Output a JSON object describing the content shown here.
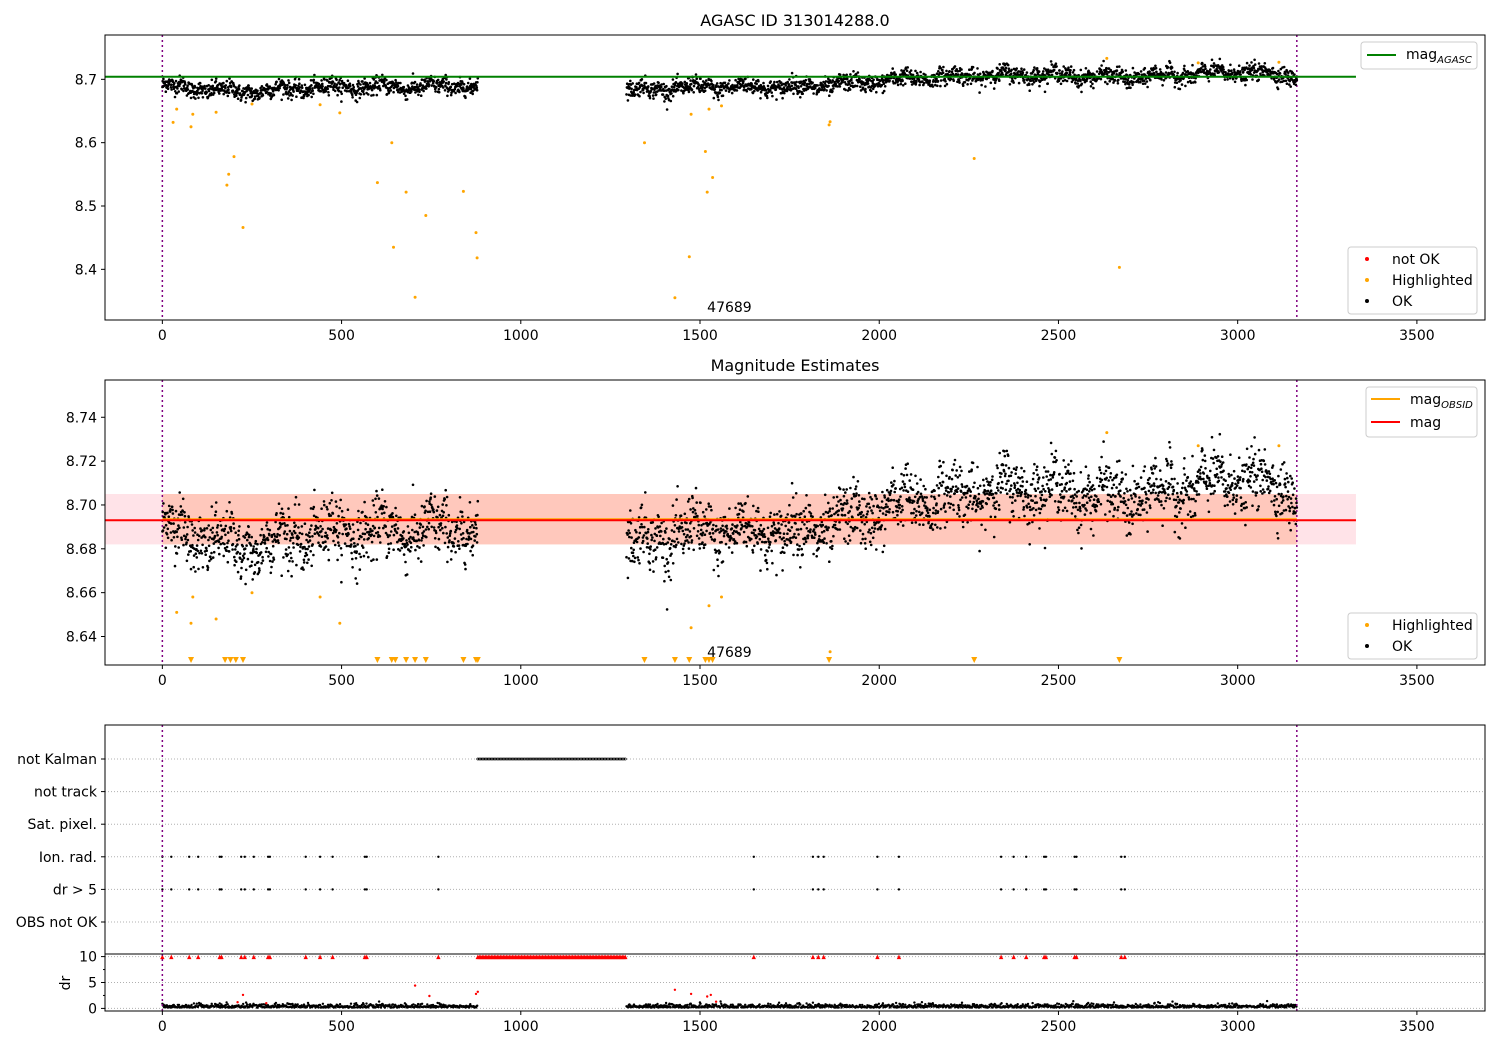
{
  "figure": {
    "title": "AGASC ID 313014288.0",
    "annotation": "47689",
    "obs_boundaries": [
      0,
      3165
    ],
    "annotation_x": 1520
  },
  "chart_data": [
    {
      "type": "scatter",
      "panel": "top",
      "title": "",
      "xlim": [
        -160,
        3690
      ],
      "ylim": [
        8.32,
        8.77
      ],
      "xticks": [
        0,
        500,
        1000,
        1500,
        2000,
        2500,
        3000,
        3500
      ],
      "yticks": [
        8.4,
        8.5,
        8.6,
        8.7
      ],
      "reference_line": {
        "name": "mag",
        "sub": "AGASC",
        "value": 8.704,
        "color": "#008000",
        "x_end": 3330
      },
      "legend_top": [
        {
          "name": "mag",
          "sub": "AGASC",
          "color": "#008000"
        }
      ],
      "legend_bottom": [
        {
          "name": "not OK",
          "color": "#ff0000"
        },
        {
          "name": "Highlighted",
          "color": "#ffa500"
        },
        {
          "name": "OK",
          "color": "#000000"
        }
      ],
      "segments": [
        {
          "x": [
            0,
            880
          ],
          "levels": [
            [
              0,
              8.69
            ],
            [
              220,
              8.68
            ],
            [
              450,
              8.688
            ],
            [
              700,
              8.688
            ],
            [
              880,
              8.69
            ]
          ],
          "spread": 0.012
        },
        {
          "x": [
            1295,
            3165
          ],
          "levels": [
            [
              1295,
              8.683
            ],
            [
              1500,
              8.688
            ],
            [
              1800,
              8.688
            ],
            [
              2100,
              8.702
            ],
            [
              2400,
              8.708
            ],
            [
              2700,
              8.703
            ],
            [
              3000,
              8.712
            ],
            [
              3165,
              8.706
            ]
          ],
          "spread": 0.012
        }
      ],
      "highlighted": [
        [
          30,
          8.632
        ],
        [
          40,
          8.653
        ],
        [
          80,
          8.625
        ],
        [
          85,
          8.645
        ],
        [
          150,
          8.648
        ],
        [
          180,
          8.533
        ],
        [
          185,
          8.55
        ],
        [
          200,
          8.578
        ],
        [
          225,
          8.466
        ],
        [
          250,
          8.661
        ],
        [
          440,
          8.66
        ],
        [
          495,
          8.647
        ],
        [
          600,
          8.537
        ],
        [
          640,
          8.6
        ],
        [
          645,
          8.435
        ],
        [
          680,
          8.522
        ],
        [
          705,
          8.356
        ],
        [
          735,
          8.485
        ],
        [
          840,
          8.523
        ],
        [
          875,
          8.458
        ],
        [
          878,
          8.418
        ],
        [
          1345,
          8.6
        ],
        [
          1430,
          8.355
        ],
        [
          1470,
          8.42
        ],
        [
          1475,
          8.645
        ],
        [
          1515,
          8.586
        ],
        [
          1520,
          8.522
        ],
        [
          1525,
          8.653
        ],
        [
          1535,
          8.545
        ],
        [
          1560,
          8.658
        ],
        [
          1860,
          8.628
        ],
        [
          1863,
          8.633
        ],
        [
          2265,
          8.575
        ],
        [
          2635,
          8.733
        ],
        [
          2670,
          8.403
        ],
        [
          2890,
          8.726
        ],
        [
          3115,
          8.727
        ]
      ]
    },
    {
      "type": "scatter",
      "panel": "middle",
      "title": "Magnitude Estimates",
      "xlim": [
        -160,
        3690
      ],
      "ylim": [
        8.627,
        8.757
      ],
      "xticks": [
        0,
        500,
        1000,
        1500,
        2000,
        2500,
        3000,
        3500
      ],
      "yticks": [
        8.64,
        8.66,
        8.68,
        8.7,
        8.72,
        8.74
      ],
      "mag": 8.693,
      "mag_band": [
        8.682,
        8.705
      ],
      "band_x_end": 3330,
      "legend_top": [
        {
          "name": "mag",
          "sub": "OBSID",
          "color": "#ffa500"
        },
        {
          "name": "mag",
          "sub": "",
          "color": "#ff0000"
        }
      ],
      "legend_bottom": [
        {
          "name": "Highlighted",
          "color": "#ffa500"
        },
        {
          "name": "OK",
          "color": "#000000"
        }
      ],
      "highlighted_in_range": [
        [
          40,
          8.651
        ],
        [
          80,
          8.646
        ],
        [
          85,
          8.658
        ],
        [
          150,
          8.648
        ],
        [
          250,
          8.66
        ],
        [
          440,
          8.658
        ],
        [
          495,
          8.646
        ],
        [
          1475,
          8.644
        ],
        [
          1525,
          8.654
        ],
        [
          1560,
          8.658
        ],
        [
          1863,
          8.633
        ],
        [
          2635,
          8.733
        ],
        [
          2890,
          8.727
        ],
        [
          3115,
          8.727
        ]
      ],
      "below_range_markers": [
        80,
        175,
        190,
        205,
        225,
        600,
        640,
        650,
        680,
        705,
        735,
        840,
        875,
        880,
        1345,
        1430,
        1470,
        1515,
        1525,
        1535,
        1860,
        2265,
        2670
      ]
    },
    {
      "type": "scatter",
      "panel": "flags",
      "title": "",
      "xlim": [
        -160,
        3690
      ],
      "xticks": [
        0,
        500,
        1000,
        1500,
        2000,
        2500,
        3000,
        3500
      ],
      "categories": [
        "not Kalman",
        "not track",
        "Sat. pixel.",
        "Ion. rad.",
        "dr > 5",
        "OBS not OK"
      ],
      "not_kalman_range": [
        880,
        1295
      ],
      "flag_x": [
        0,
        25,
        75,
        100,
        160,
        165,
        220,
        230,
        255,
        295,
        300,
        400,
        440,
        475,
        565,
        570,
        770,
        1650,
        1815,
        1830,
        1845,
        1995,
        2055,
        2340,
        2375,
        2410,
        2460,
        2465,
        2545,
        2550,
        2675,
        2685
      ]
    },
    {
      "type": "scatter",
      "panel": "dr",
      "title": "",
      "xlim": [
        -160,
        3690
      ],
      "ylim": [
        -0.5,
        10.5
      ],
      "ylabel": "dr",
      "xticks": [
        0,
        500,
        1000,
        1500,
        2000,
        2500,
        3000,
        3500
      ],
      "yticks": [
        0,
        5,
        10
      ],
      "clip_value": 10,
      "outliers": [
        [
          210,
          1.2
        ],
        [
          225,
          2.6
        ],
        [
          290,
          1.0
        ],
        [
          705,
          4.4
        ],
        [
          745,
          2.4
        ],
        [
          875,
          2.8
        ],
        [
          880,
          3.2
        ],
        [
          1430,
          3.6
        ],
        [
          1475,
          2.8
        ],
        [
          1520,
          2.3
        ],
        [
          1530,
          2.6
        ],
        [
          1545,
          1.3
        ]
      ]
    }
  ]
}
